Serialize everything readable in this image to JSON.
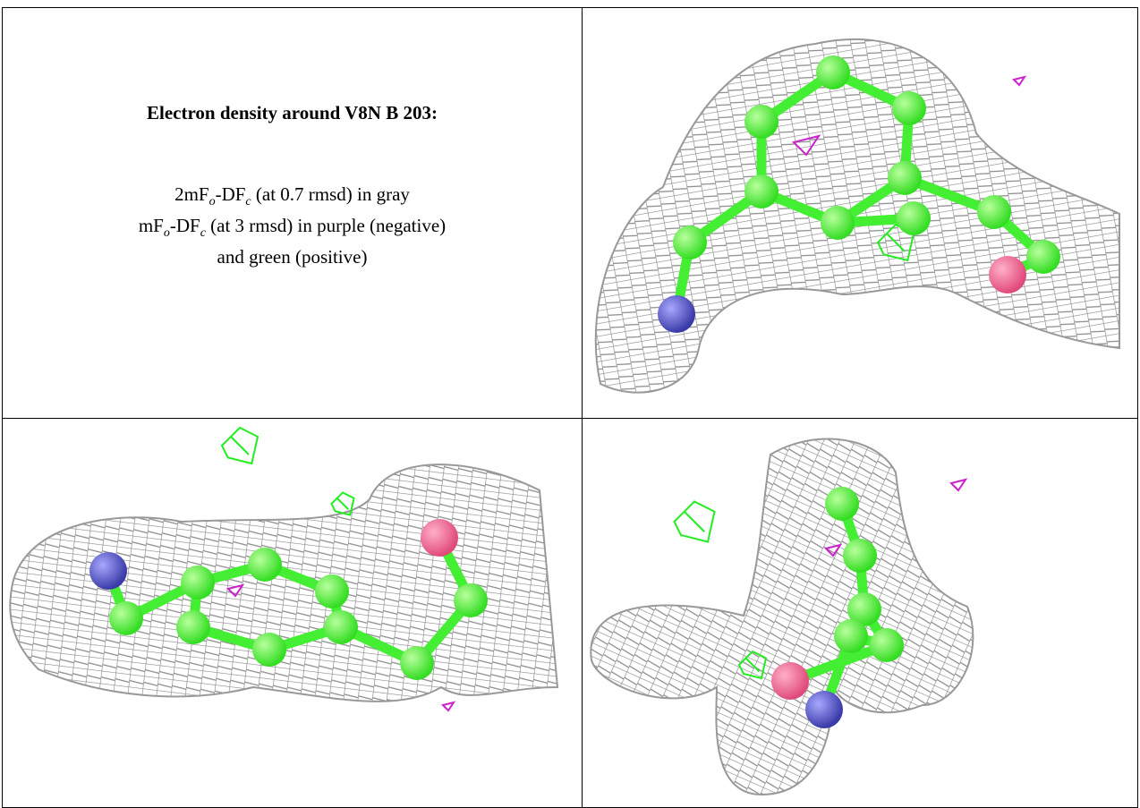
{
  "caption": {
    "title": "Electron density around V8N B 203:",
    "lines": [
      [
        "2mF",
        "o",
        "-DF",
        "c",
        " (at 0.7 rmsd) in gray"
      ],
      [
        "mF",
        "o",
        "-DF",
        "c",
        " (at 3 rmsd) in purple (negative)"
      ],
      [
        "and green (positive)"
      ]
    ]
  }
}
